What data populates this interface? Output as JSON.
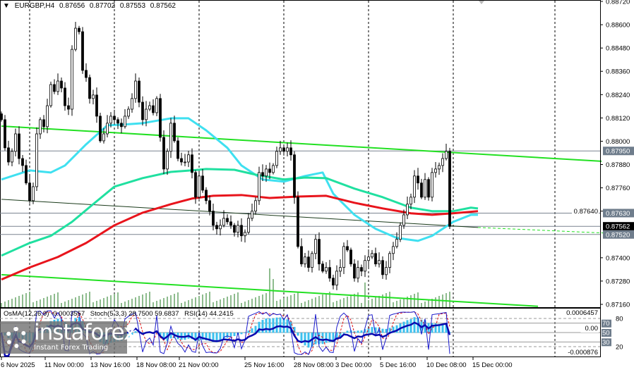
{
  "header": {
    "symbol": "EURGBP,H4",
    "open": "0.87656",
    "high": "0.87702",
    "low": "0.87553",
    "close": "0.87562"
  },
  "oscillator_header": {
    "osma": "OsMA(12,26,9) -0.0003557",
    "stoch": "Stoch(5,3,3) 28.7500 59.6837",
    "rsi": "RSI(14) 44.2415"
  },
  "logo": {
    "name": "instaforex",
    "tagline": "Instant Forex Trading"
  },
  "colors": {
    "fast_ma": "#3fe0f0",
    "mid_ma": "#20e0a0",
    "slow_ma": "#e8141c",
    "channel": "#22e022",
    "osma_hist": "#3cc0ee",
    "stoch_main": "#1a1acc",
    "stoch_signal": "#e01010",
    "rsi": "#0a0ab0",
    "volume": "#1d7a1d",
    "price_tag": "#6f7d8c",
    "current_price_tag": "#000000"
  },
  "chart_data": {
    "type": "candlestick",
    "symbol": "EURGBP",
    "timeframe": "H4",
    "ylim": [
      0.8716,
      0.8872
    ],
    "grid": "vertical dashed",
    "y_ticks": [
      "0.88720",
      "0.88600",
      "0.88480",
      "0.88360",
      "0.88240",
      "0.88120",
      "0.88000",
      "0.87880",
      "0.87760",
      "0.87640",
      "0.87400",
      "0.87280",
      "0.87160"
    ],
    "x_ticks": [
      "6 Nov 2025",
      "11 Nov 00:00",
      "13 Nov 16:00",
      "18 Nov 08:00",
      "21 Nov 00:00",
      "25 Nov 16:00",
      "28 Nov 08:00",
      "3 Dec 00:00",
      "5 Dec 16:00",
      "10 Dec 08:00",
      "15 Dec 00:00"
    ],
    "price_tags": [
      {
        "value": "0.87950",
        "kind": "level"
      },
      {
        "value": "0.87630",
        "kind": "level"
      },
      {
        "value": "0.87562",
        "kind": "current"
      },
      {
        "value": "0.87520",
        "kind": "level"
      }
    ],
    "closes": [
      0.88111,
      0.87966,
      0.87893,
      0.87948,
      0.88038,
      0.87911,
      0.87875,
      0.87785,
      0.87694,
      0.87766,
      0.88038,
      0.88111,
      0.88075,
      0.88183,
      0.88292,
      0.88256,
      0.8831,
      0.88274,
      0.88183,
      0.88165,
      0.88473,
      0.88582,
      0.88564,
      0.88365,
      0.88328,
      0.8822,
      0.88238,
      0.88129,
      0.88002,
      0.88038,
      0.88093,
      0.88129,
      0.88111,
      0.88093,
      0.88075,
      0.88129,
      0.88165,
      0.8822,
      0.8831,
      0.88201,
      0.88111,
      0.88165,
      0.88183,
      0.88147,
      0.8822,
      0.8802,
      0.87857,
      0.87948,
      0.88093,
      0.88002,
      0.87911,
      0.87893,
      0.87893,
      0.8793,
      0.87839,
      0.87712,
      0.87821,
      0.87748,
      0.87694,
      0.8764,
      0.87567,
      0.87549,
      0.87567,
      0.87603,
      0.87585,
      0.87567,
      0.87531,
      0.87567,
      0.87513,
      0.87531,
      0.87603,
      0.8764,
      0.87694,
      0.87839,
      0.87821,
      0.87857,
      0.87839,
      0.87875,
      0.87948,
      0.87966,
      0.87948,
      0.87966,
      0.8793,
      0.87712,
      0.87458,
      0.87368,
      0.87404,
      0.8735,
      0.87422,
      0.87495,
      0.87368,
      0.87331,
      0.8735,
      0.87295,
      0.87259,
      0.87331,
      0.8735,
      0.87458,
      0.8744,
      0.87368,
      0.87295,
      0.8735,
      0.87331,
      0.87386,
      0.87404,
      0.87422,
      0.87368,
      0.87386,
      0.87313,
      0.8735,
      0.87422,
      0.87458,
      0.87495,
      0.87567,
      0.87621,
      0.87676,
      0.87712,
      0.87821,
      0.87785,
      0.87712,
      0.87803,
      0.87712,
      0.87839,
      0.87857,
      0.87875,
      0.87911,
      0.87948,
      0.87562
    ],
    "moving_averages": [
      {
        "role": "fast",
        "points": [
          [
            0,
            0.87803
          ],
          [
            8,
            0.8785
          ],
          [
            10,
            0.87846
          ],
          [
            14,
            0.87839
          ],
          [
            18,
            0.87875
          ],
          [
            24,
            0.87984
          ],
          [
            30,
            0.88082
          ],
          [
            34,
            0.88085
          ],
          [
            40,
            0.88093
          ],
          [
            48,
            0.88118
          ],
          [
            53,
            0.88118
          ],
          [
            58,
            0.88056
          ],
          [
            64,
            0.87966
          ],
          [
            68,
            0.87875
          ],
          [
            74,
            0.87803
          ],
          [
            80,
            0.87792
          ],
          [
            86,
            0.87821
          ],
          [
            91,
            0.87839
          ],
          [
            94,
            0.8773
          ],
          [
            100,
            0.87621
          ],
          [
            106,
            0.87549
          ],
          [
            112,
            0.87502
          ],
          [
            118,
            0.87487
          ],
          [
            122,
            0.87513
          ],
          [
            128,
            0.87585
          ],
          [
            133,
            0.87621
          ],
          [
            135,
            0.87621
          ]
        ]
      },
      {
        "role": "medium",
        "points": [
          [
            0,
            0.87411
          ],
          [
            8,
            0.87476
          ],
          [
            14,
            0.87513
          ],
          [
            20,
            0.87585
          ],
          [
            26,
            0.87676
          ],
          [
            32,
            0.87766
          ],
          [
            40,
            0.8781
          ],
          [
            48,
            0.87842
          ],
          [
            54,
            0.8785
          ],
          [
            58,
            0.87857
          ],
          [
            66,
            0.87853
          ],
          [
            72,
            0.87828
          ],
          [
            80,
            0.87803
          ],
          [
            86,
            0.87813
          ],
          [
            92,
            0.8781
          ],
          [
            100,
            0.87756
          ],
          [
            108,
            0.87712
          ],
          [
            116,
            0.87658
          ],
          [
            122,
            0.8764
          ],
          [
            128,
            0.8764
          ],
          [
            133,
            0.87658
          ],
          [
            135,
            0.87654
          ]
        ]
      },
      {
        "role": "slow",
        "points": [
          [
            0,
            0.87288
          ],
          [
            8,
            0.8735
          ],
          [
            16,
            0.87404
          ],
          [
            24,
            0.87476
          ],
          [
            32,
            0.87567
          ],
          [
            40,
            0.87632
          ],
          [
            48,
            0.87676
          ],
          [
            54,
            0.87705
          ],
          [
            60,
            0.87719
          ],
          [
            68,
            0.87723
          ],
          [
            76,
            0.87708
          ],
          [
            84,
            0.87715
          ],
          [
            92,
            0.87719
          ],
          [
            100,
            0.87683
          ],
          [
            108,
            0.87654
          ],
          [
            116,
            0.87629
          ],
          [
            122,
            0.87621
          ],
          [
            128,
            0.87629
          ],
          [
            135,
            0.8764
          ]
        ]
      }
    ],
    "trendlines": [
      {
        "role": "channel-upper",
        "from": [
          0,
          0.88078
        ],
        "to": [
          170,
          0.87897
        ]
      },
      {
        "role": "channel-lower",
        "from": [
          0,
          0.87313
        ],
        "to": [
          152,
          0.8715
        ]
      },
      {
        "role": "support",
        "from": [
          0,
          0.87701
        ],
        "to": [
          135,
          0.87556
        ]
      },
      {
        "role": "support-projection",
        "from": [
          135,
          0.87556
        ],
        "to": [
          180,
          0.8752
        ]
      }
    ],
    "horizontal_levels": [
      0.8795,
      0.8763,
      0.87562,
      0.8752
    ],
    "oscillator": {
      "levels": [
        "80",
        "70",
        "50",
        "30",
        "20"
      ],
      "scale_labels": [
        "0.0006457",
        "0.00",
        "-0.000876"
      ]
    }
  }
}
